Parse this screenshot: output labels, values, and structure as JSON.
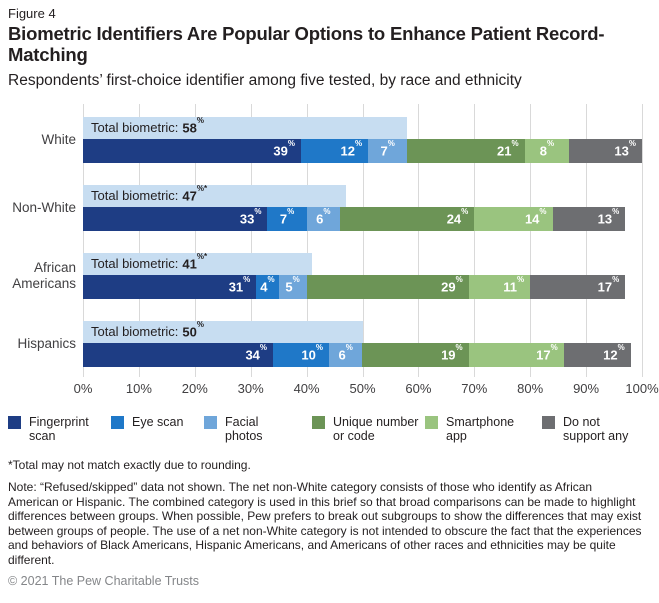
{
  "figure_label": "Figure 4",
  "title": "Biometric Identifiers Are Popular Options to Enhance Patient Record-Matching",
  "subtitle": "Respondents’ first-choice identifier among five tested, by race and ethnicity",
  "chart_data": {
    "type": "bar",
    "orientation": "horizontal",
    "stacked": true,
    "grid": true,
    "categories": [
      "White",
      "Non-White",
      "African Americans",
      "Hispanics"
    ],
    "totals": [
      {
        "label": "Total biometric:",
        "value": 58,
        "asterisk": false
      },
      {
        "label": "Total biometric:",
        "value": 47,
        "asterisk": true
      },
      {
        "label": "Total biometric:",
        "value": 41,
        "asterisk": true
      },
      {
        "label": "Total biometric:",
        "value": 50,
        "asterisk": false
      }
    ],
    "total_band_color": "#c7ddf1",
    "series": [
      {
        "name": "Fingerprint scan",
        "color": "#1e3d84",
        "values": [
          39,
          33,
          31,
          34
        ]
      },
      {
        "name": "Eye scan",
        "color": "#1f78c8",
        "values": [
          12,
          7,
          4,
          10
        ]
      },
      {
        "name": "Facial photos",
        "color": "#6fa6da",
        "values": [
          7,
          6,
          5,
          6
        ]
      },
      {
        "name": "Unique number or code",
        "color": "#6c9456",
        "values": [
          21,
          24,
          29,
          19
        ]
      },
      {
        "name": "Smartphone app",
        "color": "#9ac47f",
        "values": [
          8,
          14,
          11,
          17
        ]
      },
      {
        "name": "Do not support any",
        "color": "#6d6e71",
        "values": [
          13,
          13,
          17,
          12
        ]
      }
    ],
    "value_suffix": "%",
    "xlim": [
      0,
      100
    ],
    "x_ticks": [
      "0%",
      "10%",
      "20%",
      "30%",
      "40%",
      "50%",
      "60%",
      "70%",
      "80%",
      "90%",
      "100%"
    ],
    "gridline_color": "#d9d9d9",
    "legend_position": "bottom"
  },
  "legend_label_widths": [
    78,
    60,
    50,
    95,
    80,
    80
  ],
  "footnote": "*Total may not match exactly due to rounding.",
  "note": "Note: “Refused/skipped” data not shown. The net non-White category consists of those who identify as African American or Hispanic. The combined category is used in this brief so that broad comparisons can be made to highlight differences between groups. When possible, Pew prefers to break out subgroups to show the differences that may exist between groups of people. The use of a net non-White category is not intended to obscure the fact that the experiences and behaviors of Black Americans, Hispanic Americans, and Americans of other races and ethnicities may be quite different.",
  "copyright": "© 2021 The Pew Charitable Trusts"
}
